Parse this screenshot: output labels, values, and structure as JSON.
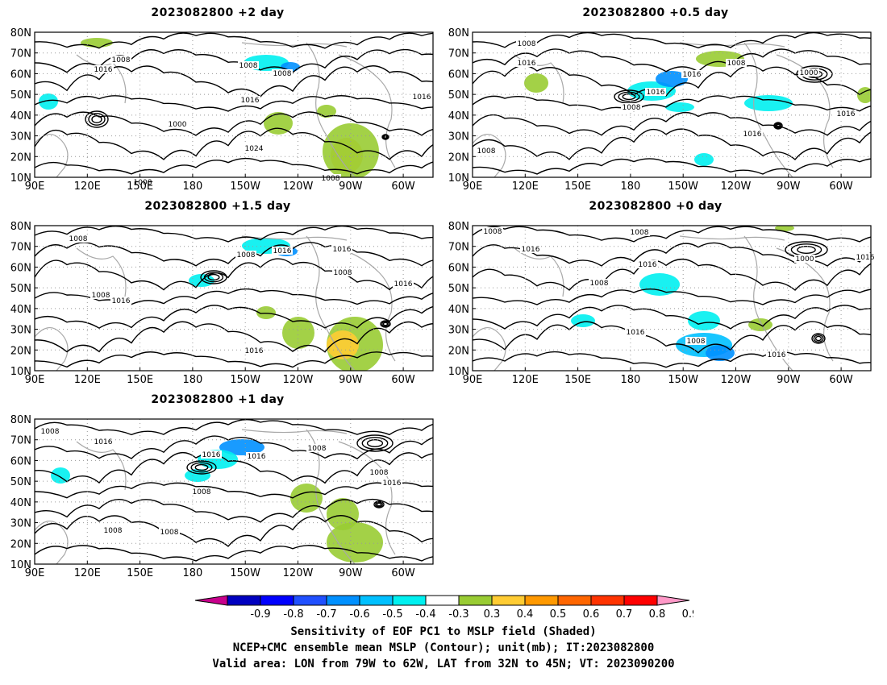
{
  "panels": [
    {
      "id": "p2",
      "title": "2023082800  +2  day",
      "contour_labels": [
        "1008",
        "1016",
        "1008",
        "1008",
        "1016",
        "1000",
        "1016",
        "1024",
        "1008",
        "1008"
      ]
    },
    {
      "id": "p05",
      "title": "2023082800  +0.5  day",
      "contour_labels": [
        "1008",
        "1016",
        "1008",
        "1016",
        "1016",
        "1008",
        "1000",
        "1016",
        "1016",
        "1008"
      ]
    },
    {
      "id": "p15",
      "title": "2023082800  +1.5  day",
      "contour_labels": [
        "1008",
        "1008",
        "1016",
        "1008",
        "1016",
        "1016",
        "1008",
        "1016",
        "1016"
      ]
    },
    {
      "id": "p0",
      "title": "2023082800  +0  day",
      "contour_labels": [
        "1008",
        "1016",
        "1008",
        "1016",
        "1008",
        "1000",
        "1016",
        "1016",
        "1008",
        "1016"
      ]
    },
    {
      "id": "p1",
      "title": "2023082800  +1  day",
      "contour_labels": [
        "1008",
        "1016",
        "1016",
        "1016",
        "1008",
        "1008",
        "1016",
        "1008",
        "1008",
        "1008"
      ]
    }
  ],
  "axes": {
    "lat_labels": [
      "80N",
      "70N",
      "60N",
      "50N",
      "40N",
      "30N",
      "20N",
      "10N"
    ],
    "lon_labels": [
      "90E",
      "120E",
      "150E",
      "180",
      "150W",
      "120W",
      "90W",
      "60W"
    ]
  },
  "colorbar": {
    "ticks": [
      "-0.9",
      "-0.8",
      "-0.7",
      "-0.6",
      "-0.5",
      "-0.4",
      "-0.3",
      "0.3",
      "0.4",
      "0.5",
      "0.6",
      "0.7",
      "0.8",
      "0.9"
    ],
    "colors": [
      "#0000c0",
      "#0000ff",
      "#2050ff",
      "#0090ff",
      "#00c0ff",
      "#00f0f0",
      "#ffffff",
      "#99cc33",
      "#ffcc33",
      "#ff9900",
      "#ff6600",
      "#ff3300",
      "#ff0000"
    ],
    "under_color": "#c8008c",
    "over_color": "#ff99c8"
  },
  "caption": {
    "line1": "Sensitivity of EOF PC1 to MSLP field (Shaded)",
    "line2": "NCEP+CMC ensemble mean MSLP (Contour); unit(mb); IT:2023082800",
    "line3": "Valid area: LON from 79W to 62W, LAT from 32N to 45N; VT: 2023090200"
  }
}
